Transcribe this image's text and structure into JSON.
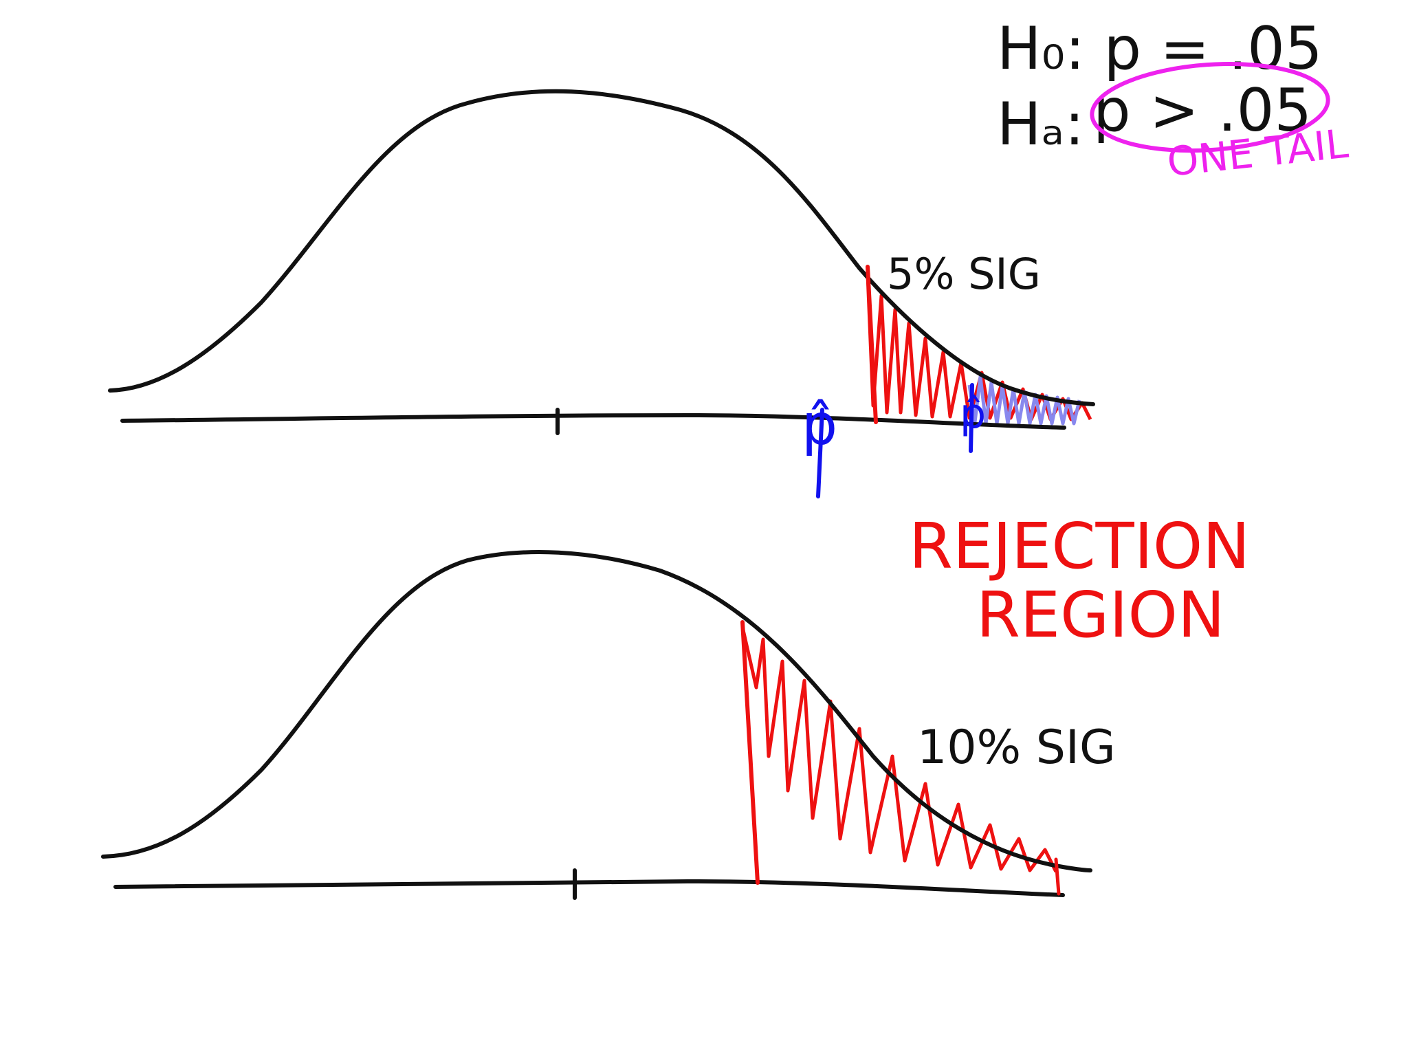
{
  "hypotheses": {
    "null": "H₀: p = .05",
    "alternative_prefix": "Hₐ:",
    "alternative": "p > .05",
    "note": "ONE TAIL"
  },
  "top_curve": {
    "significance_label": "5% SIG",
    "phat_label_1": "p̂",
    "phat_label_2": "p̂"
  },
  "rejection_label": {
    "line1": "REJECTION",
    "line2": "REGION"
  },
  "bottom_curve": {
    "significance_label": "10% SIG"
  },
  "colors": {
    "curve": "#111111",
    "rejection": "#ee1111",
    "phat": "#1111ee",
    "phat_shade": "#8888ee",
    "note": "#ee22ee"
  }
}
